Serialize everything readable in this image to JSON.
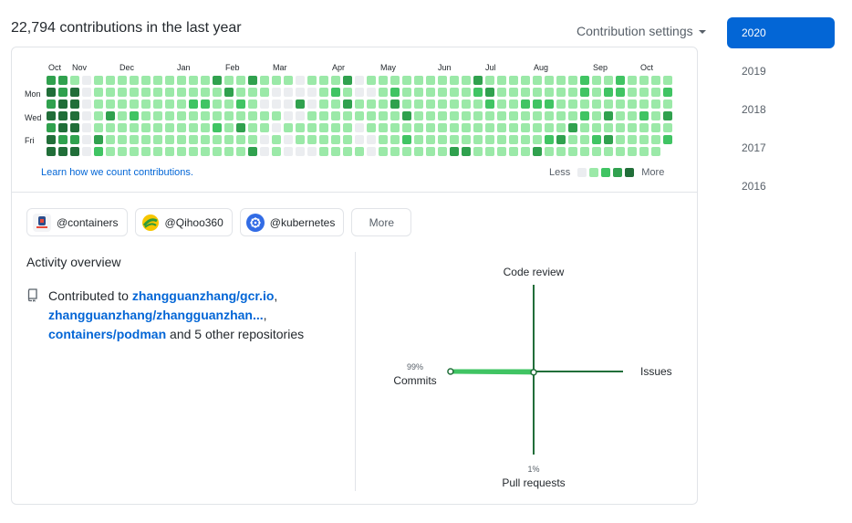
{
  "header": {
    "title": "22,794 contributions in the last year",
    "settings_label": "Contribution settings"
  },
  "years": [
    "2020",
    "2019",
    "2018",
    "2017",
    "2016"
  ],
  "active_year": "2020",
  "calendar": {
    "months": [
      "Oct",
      "Nov",
      "Dec",
      "Jan",
      "Feb",
      "Mar",
      "Apr",
      "May",
      "Jun",
      "Jul",
      "Aug",
      "Sep",
      "Oct"
    ],
    "days": [
      "Mon",
      "Wed",
      "Fri"
    ],
    "learn_link": "Learn how we count contributions.",
    "legend_less": "Less",
    "legend_more": "More",
    "colors": [
      "#ebedf0",
      "#9be9a8",
      "#40c463",
      "#30a14e",
      "#216e39"
    ]
  },
  "orgs": [
    {
      "label": "@containers",
      "icon": "containers-icon",
      "color": "#f3f4f6"
    },
    {
      "label": "@Qihoo360",
      "icon": "qihoo360-icon",
      "color": "#f6c600"
    },
    {
      "label": "@kubernetes",
      "icon": "kubernetes-icon",
      "color": "#326ce5"
    }
  ],
  "more_label": "More",
  "activity": {
    "title": "Activity overview",
    "prefix": "Contributed to ",
    "repo1": "zhangguanzhang/gcr.io",
    "sep1": ",",
    "repo2": "zhangguanzhang/zhangguanzhan...",
    "sep2": ",",
    "repo3": "containers/podman",
    "suffix": " and 5 other repositories"
  },
  "radar": {
    "code_review": "Code review",
    "issues": "Issues",
    "pull_requests": "Pull requests",
    "commits": "Commits",
    "commits_pct": "99%",
    "pull_requests_pct": "1%",
    "commits_value": 99,
    "pull_requests_value": 1,
    "code_review_value": 0,
    "issues_value": 0,
    "axis_color": "#216e39",
    "fill_color": "#40c463"
  }
}
